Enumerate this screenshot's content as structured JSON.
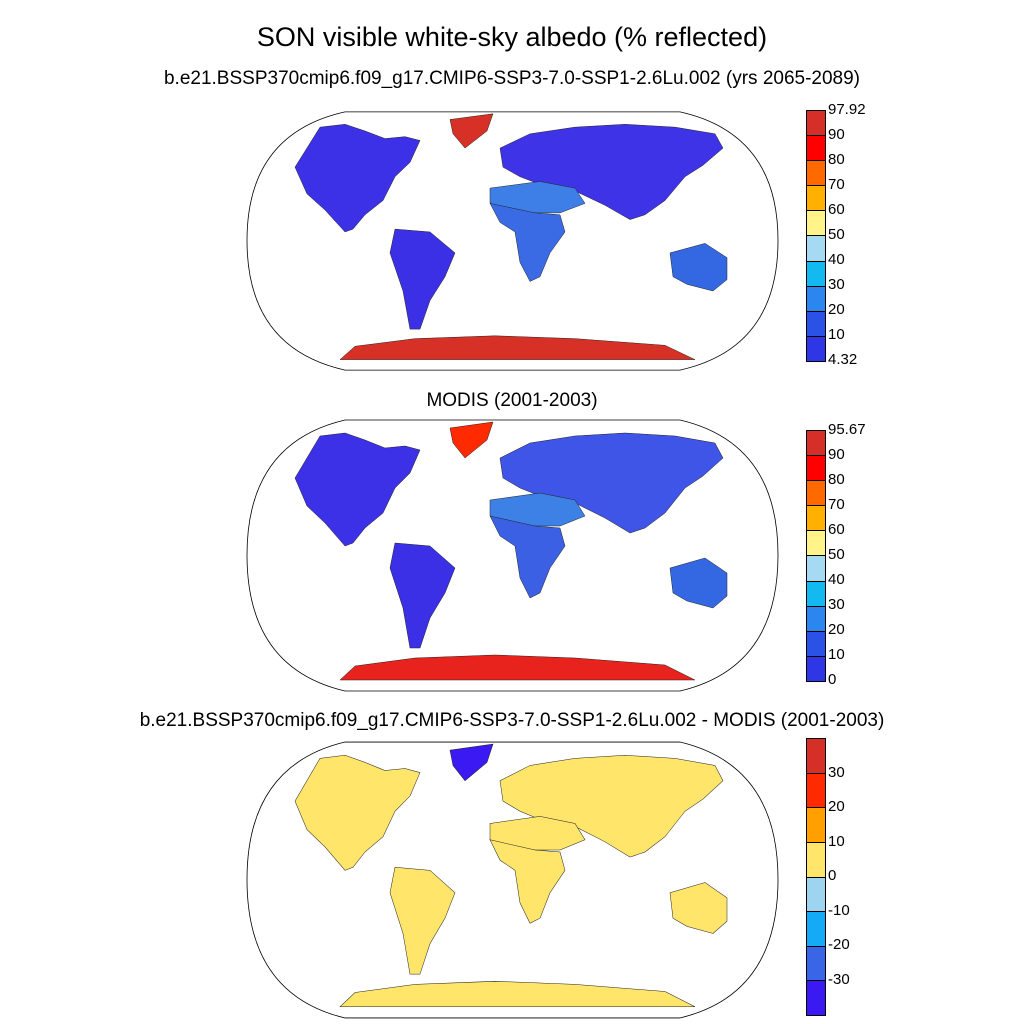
{
  "figure": {
    "title": "SON visible white-sky albedo (% reflected)"
  },
  "panels": [
    {
      "title": "b.e21.BSSP370cmip6.f09_g17.CMIP6-SSP3-7.0-SSP1-2.6Lu.002 (yrs 2065-2089)",
      "colorbar": {
        "labels": [
          "97.92",
          "90",
          "80",
          "70",
          "60",
          "50",
          "40",
          "30",
          "20",
          "10",
          "4.32"
        ],
        "colors": [
          "#d62f27",
          "#ff0000",
          "#ff6a00",
          "#ffb000",
          "#fff38a",
          "#a6d9f2",
          "#14b9f0",
          "#2b86ef",
          "#2b52e6",
          "#2e36e6"
        ]
      },
      "regions": {
        "north_america": "#3d31e8",
        "south_america": "#3b30e6",
        "greenland": "#d73027",
        "eurasia": "#3f33e8",
        "sahara_arabia": "#3d7fe6",
        "africa": "#3b6be4",
        "australia": "#3468e3",
        "antarctica": "#d73027"
      }
    },
    {
      "title": "MODIS (2001-2003)",
      "colorbar": {
        "labels": [
          "95.67",
          "90",
          "80",
          "70",
          "60",
          "50",
          "40",
          "30",
          "20",
          "10",
          "0"
        ],
        "colors": [
          "#d62f27",
          "#ff0000",
          "#ff6a00",
          "#ffb000",
          "#fff38a",
          "#a6d9f2",
          "#14b9f0",
          "#2b86ef",
          "#2b52e6",
          "#2e36e6"
        ]
      },
      "regions": {
        "north_america": "#3d31e8",
        "south_america": "#3b30e6",
        "greenland": "#ff2a00",
        "eurasia": "#3f55e8",
        "sahara_arabia": "#3d80e6",
        "africa": "#3b60e4",
        "australia": "#3468e3",
        "antarctica": "#e8231d"
      }
    },
    {
      "title": "b.e21.BSSP370cmip6.f09_g17.CMIP6-SSP3-7.0-SSP1-2.6Lu.002 - MODIS (2001-2003)",
      "colorbar": {
        "labels": [
          "30",
          "20",
          "10",
          "0",
          "-10",
          "-20",
          "-30"
        ],
        "colors": [
          "#d62f27",
          "#ff2a00",
          "#ffa000",
          "#ffe66b",
          "#9ed4f0",
          "#14aaf5",
          "#3966e6",
          "#3b19f2"
        ]
      },
      "regions": {
        "north_america": "#ffe66b",
        "south_america": "#ffe66b",
        "greenland": "#3b19f2",
        "eurasia": "#ffe66b",
        "sahara_arabia": "#ffe66b",
        "africa": "#ffe66b",
        "australia": "#ffe66b",
        "antarctica": "#ffe66b"
      }
    }
  ]
}
